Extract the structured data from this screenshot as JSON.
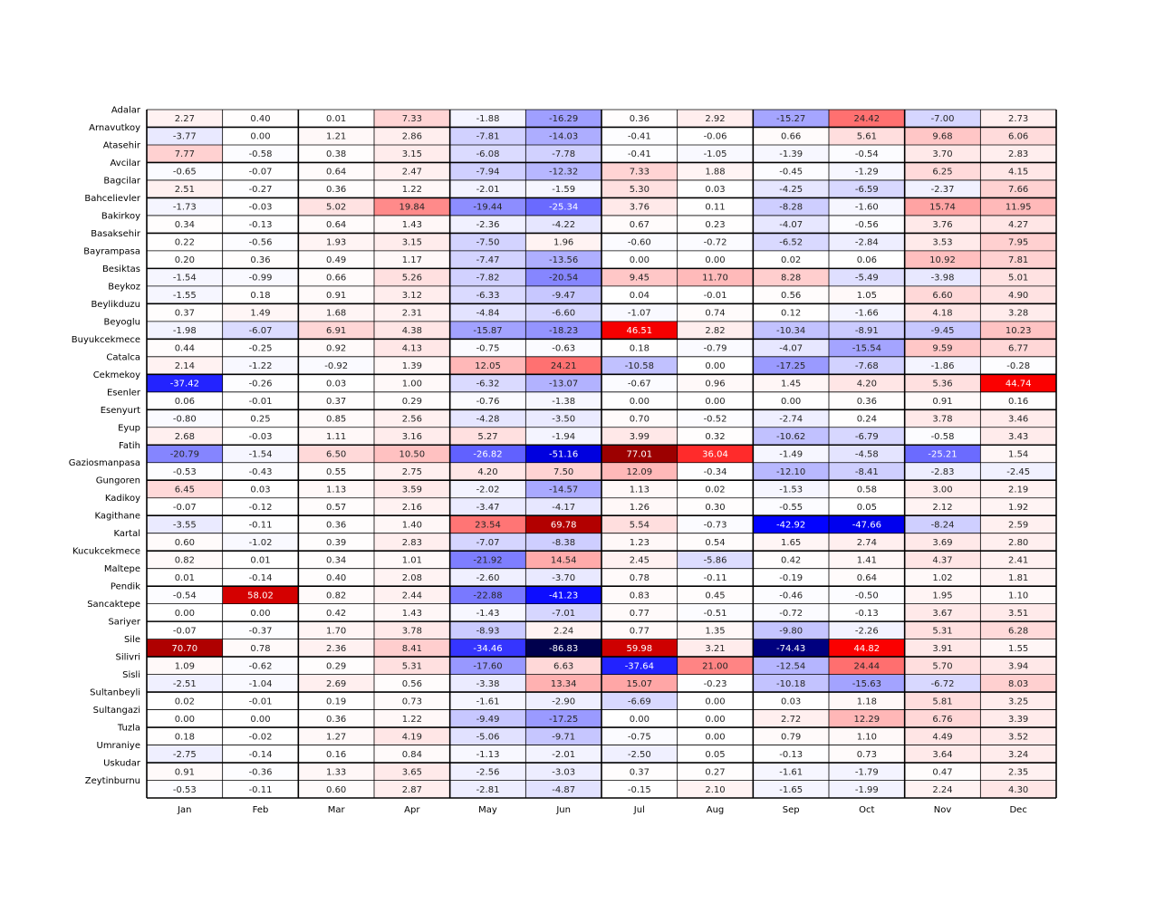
{
  "chart_data": {
    "type": "heatmap",
    "title": "",
    "xlabel": "",
    "ylabel": "",
    "colormap": "seismic",
    "color_range": [
      -86.83,
      86.83
    ],
    "x_categories": [
      "Jan",
      "Feb",
      "Mar",
      "Apr",
      "May",
      "Jun",
      "Jul",
      "Aug",
      "Sep",
      "Oct",
      "Nov",
      "Dec"
    ],
    "y_categories": [
      "Adalar",
      "Arnavutkoy",
      "Atasehir",
      "Avcilar",
      "Bagcilar",
      "Bahcelievler",
      "Bakirkoy",
      "Basaksehir",
      "Bayrampasa",
      "Besiktas",
      "Beykoz",
      "Beylikduzu",
      "Beyoglu",
      "Buyukcekmece",
      "Catalca",
      "Cekmekoy",
      "Esenler",
      "Esenyurt",
      "Eyup",
      "Fatih",
      "Gaziosmanpasa",
      "Gungoren",
      "Kadikoy",
      "Kagithane",
      "Kartal",
      "Kucukcekmece",
      "Maltepe",
      "Pendik",
      "Sancaktepe",
      "Sariyer",
      "Sile",
      "Silivri",
      "Sisli",
      "Sultanbeyli",
      "Sultangazi",
      "Tuzla",
      "Umraniye",
      "Uskudar",
      "Zeytinburnu"
    ],
    "values": [
      [
        2.27,
        0.4,
        0.01,
        7.33,
        -1.88,
        -16.29,
        0.36,
        2.92,
        -15.27,
        24.42,
        -7.0,
        2.73
      ],
      [
        -3.77,
        0.0,
        1.21,
        2.86,
        -7.81,
        -14.03,
        -0.41,
        -0.06,
        0.66,
        5.61,
        9.68,
        6.06
      ],
      [
        7.77,
        -0.58,
        0.38,
        3.15,
        -6.08,
        -7.78,
        -0.41,
        -1.05,
        -1.39,
        -0.54,
        3.7,
        2.83
      ],
      [
        -0.65,
        -0.07,
        0.64,
        2.47,
        -7.94,
        -12.32,
        7.33,
        1.88,
        -0.45,
        -1.29,
        6.25,
        4.15
      ],
      [
        2.51,
        -0.27,
        0.36,
        1.22,
        -2.01,
        -1.59,
        5.3,
        0.03,
        -4.25,
        -6.59,
        -2.37,
        7.66
      ],
      [
        -1.73,
        -0.03,
        5.02,
        19.84,
        -19.44,
        -25.34,
        3.76,
        0.11,
        -8.28,
        -1.6,
        15.74,
        11.95
      ],
      [
        0.34,
        -0.13,
        0.64,
        1.43,
        -2.36,
        -4.22,
        0.67,
        0.23,
        -4.07,
        -0.56,
        3.76,
        4.27
      ],
      [
        0.22,
        -0.56,
        1.93,
        3.15,
        -7.5,
        1.96,
        -0.6,
        -0.72,
        -6.52,
        -2.84,
        3.53,
        7.95
      ],
      [
        0.2,
        0.36,
        0.49,
        1.17,
        -7.47,
        -13.56,
        0.0,
        0.0,
        0.02,
        0.06,
        10.92,
        7.81
      ],
      [
        -1.54,
        -0.99,
        0.66,
        5.26,
        -7.82,
        -20.54,
        9.45,
        11.7,
        8.28,
        -5.49,
        -3.98,
        5.01
      ],
      [
        -1.55,
        0.18,
        0.91,
        3.12,
        -6.33,
        -9.47,
        0.04,
        -0.01,
        0.56,
        1.05,
        6.6,
        4.9
      ],
      [
        0.37,
        1.49,
        1.68,
        2.31,
        -4.84,
        -6.6,
        -1.07,
        0.74,
        0.12,
        -1.66,
        4.18,
        3.28
      ],
      [
        -1.98,
        -6.07,
        6.91,
        4.38,
        -15.87,
        -18.23,
        46.51,
        2.82,
        -10.34,
        -8.91,
        -9.45,
        10.23
      ],
      [
        0.44,
        -0.25,
        0.92,
        4.13,
        -0.75,
        -0.63,
        0.18,
        -0.79,
        -4.07,
        -15.54,
        9.59,
        6.77
      ],
      [
        2.14,
        -1.22,
        -0.92,
        1.39,
        12.05,
        24.21,
        -10.58,
        0.0,
        -17.25,
        -7.68,
        -1.86,
        -0.28
      ],
      [
        -37.42,
        -0.26,
        0.03,
        1.0,
        -6.32,
        -13.07,
        -0.67,
        0.96,
        1.45,
        4.2,
        5.36,
        44.74
      ],
      [
        0.06,
        -0.01,
        0.37,
        0.29,
        -0.76,
        -1.38,
        0.0,
        0.0,
        0.0,
        0.36,
        0.91,
        0.16
      ],
      [
        -0.8,
        0.25,
        0.85,
        2.56,
        -4.28,
        -3.5,
        0.7,
        -0.52,
        -2.74,
        0.24,
        3.78,
        3.46
      ],
      [
        2.68,
        -0.03,
        1.11,
        3.16,
        5.27,
        -1.94,
        3.99,
        0.32,
        -10.62,
        -6.79,
        -0.58,
        3.43
      ],
      [
        -20.79,
        -1.54,
        6.5,
        10.5,
        -26.82,
        -51.16,
        77.01,
        36.04,
        -1.49,
        -4.58,
        -25.21,
        1.54
      ],
      [
        -0.53,
        -0.43,
        0.55,
        2.75,
        4.2,
        7.5,
        12.09,
        -0.34,
        -12.1,
        -8.41,
        -2.83,
        -2.45
      ],
      [
        6.45,
        0.03,
        1.13,
        3.59,
        -2.02,
        -14.57,
        1.13,
        0.02,
        -1.53,
        0.58,
        3.0,
        2.19
      ],
      [
        -0.07,
        -0.12,
        0.57,
        2.16,
        -3.47,
        -4.17,
        1.26,
        0.3,
        -0.55,
        0.05,
        2.12,
        1.92
      ],
      [
        -3.55,
        -0.11,
        0.36,
        1.4,
        23.54,
        69.78,
        5.54,
        -0.73,
        -42.92,
        -47.66,
        -8.24,
        2.59
      ],
      [
        0.6,
        -1.02,
        0.39,
        2.83,
        -7.07,
        -8.38,
        1.23,
        0.54,
        1.65,
        2.74,
        3.69,
        2.8
      ],
      [
        0.82,
        0.01,
        0.34,
        1.01,
        -21.92,
        14.54,
        2.45,
        -5.86,
        0.42,
        1.41,
        4.37,
        2.41
      ],
      [
        0.01,
        -0.14,
        0.4,
        2.08,
        -2.6,
        -3.7,
        0.78,
        -0.11,
        -0.19,
        0.64,
        1.02,
        1.81
      ],
      [
        -0.54,
        58.02,
        0.82,
        2.44,
        -22.88,
        -41.23,
        0.83,
        0.45,
        -0.46,
        -0.5,
        1.95,
        1.1
      ],
      [
        0.0,
        0.0,
        0.42,
        1.43,
        -1.43,
        -7.01,
        0.77,
        -0.51,
        -0.72,
        -0.13,
        3.67,
        3.51
      ],
      [
        -0.07,
        -0.37,
        1.7,
        3.78,
        -8.93,
        2.24,
        0.77,
        1.35,
        -9.8,
        -2.26,
        5.31,
        6.28
      ],
      [
        70.7,
        0.78,
        2.36,
        8.41,
        -34.46,
        -86.83,
        59.98,
        3.21,
        -74.43,
        44.82,
        3.91,
        1.55
      ],
      [
        1.09,
        -0.62,
        0.29,
        5.31,
        -17.6,
        6.63,
        -37.64,
        21.0,
        -12.54,
        24.44,
        5.7,
        3.94
      ],
      [
        -2.51,
        -1.04,
        2.69,
        0.56,
        -3.38,
        13.34,
        15.07,
        -0.23,
        -10.18,
        -15.63,
        -6.72,
        8.03
      ],
      [
        0.02,
        -0.01,
        0.19,
        0.73,
        -1.61,
        -2.9,
        -6.69,
        0.0,
        0.03,
        1.18,
        5.81,
        3.25
      ],
      [
        0.0,
        0.0,
        0.36,
        1.22,
        -9.49,
        -17.25,
        0.0,
        0.0,
        2.72,
        12.29,
        6.76,
        3.39
      ],
      [
        0.18,
        -0.02,
        1.27,
        4.19,
        -5.06,
        -9.71,
        -0.75,
        0.0,
        0.79,
        1.1,
        4.49,
        3.52
      ],
      [
        -2.75,
        -0.14,
        0.16,
        0.84,
        -1.13,
        -2.01,
        -2.5,
        0.05,
        -0.13,
        0.73,
        3.64,
        3.24
      ],
      [
        0.91,
        -0.36,
        1.33,
        3.65,
        -2.56,
        -3.03,
        0.37,
        0.27,
        -1.61,
        -1.79,
        0.47,
        2.35
      ],
      [
        -0.53,
        -0.11,
        0.6,
        2.87,
        -2.81,
        -4.87,
        -0.15,
        2.1,
        -1.65,
        -1.99,
        2.24,
        4.3
      ]
    ],
    "grid": true,
    "legend": "none"
  }
}
